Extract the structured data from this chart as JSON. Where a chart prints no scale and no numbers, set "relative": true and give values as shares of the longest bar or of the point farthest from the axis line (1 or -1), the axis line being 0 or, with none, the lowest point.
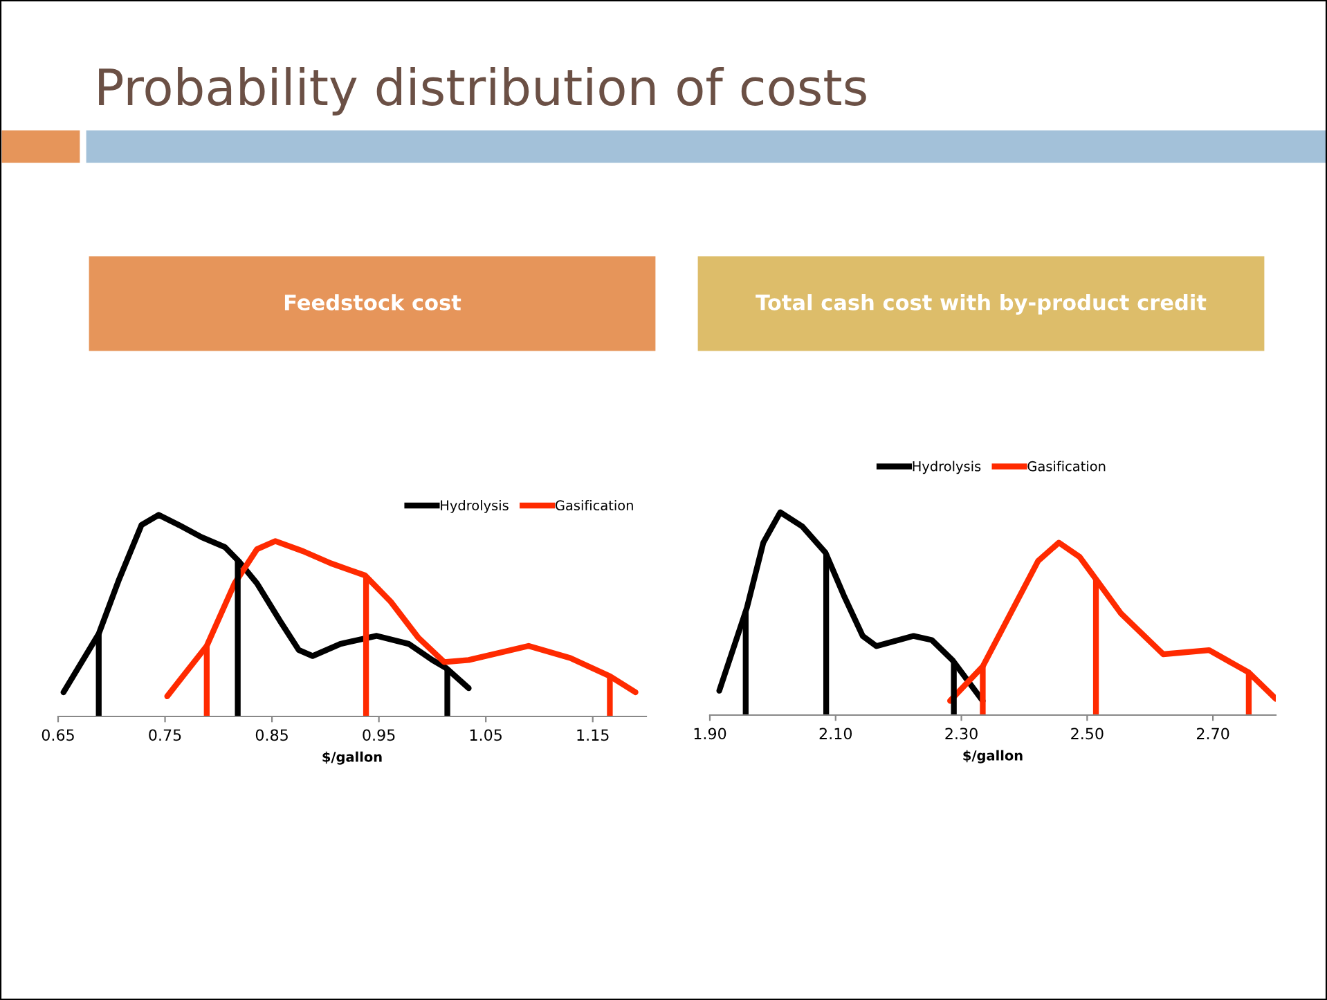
{
  "chart_data": [
    {
      "type": "line",
      "title": "Feedstock cost",
      "xlabel": "$/gallon",
      "relative": true,
      "xlim": [
        0.65,
        1.2
      ],
      "xticks": [
        {
          "value": 0.65,
          "label": "0.65"
        },
        {
          "value": 0.75,
          "label": "0.75"
        },
        {
          "value": 0.85,
          "label": "0.85"
        },
        {
          "value": 0.95,
          "label": "0.95"
        },
        {
          "value": 1.05,
          "label": "1.05"
        },
        {
          "value": 1.15,
          "label": "1.15"
        }
      ],
      "legend": "top right",
      "grid": false,
      "marker": "none",
      "line_style": "solid",
      "annotations": [
        "Probability distribution of costs"
      ],
      "series": [
        {
          "name": "Hydrolysis",
          "color": "#000000",
          "x": [
            0.655,
            0.688,
            0.707,
            0.728,
            0.744,
            0.763,
            0.784,
            0.806,
            0.819,
            0.836,
            0.858,
            0.875,
            0.888,
            0.914,
            0.948,
            0.978,
            1.0,
            1.013,
            1.034
          ],
          "values": [
            0.12,
            0.41,
            0.68,
            0.95,
            1.0,
            0.95,
            0.89,
            0.84,
            0.77,
            0.66,
            0.47,
            0.33,
            0.3,
            0.36,
            0.4,
            0.36,
            0.28,
            0.24,
            0.14
          ]
        },
        {
          "name": "Gasification",
          "color": "#ff2a00",
          "x": [
            0.752,
            0.789,
            0.815,
            0.836,
            0.853,
            0.879,
            0.905,
            0.937,
            0.961,
            0.987,
            1.011,
            1.034,
            1.09,
            1.129,
            1.166,
            1.19
          ],
          "values": [
            0.1,
            0.35,
            0.66,
            0.83,
            0.87,
            0.82,
            0.76,
            0.7,
            0.57,
            0.39,
            0.27,
            0.28,
            0.35,
            0.29,
            0.2,
            0.12
          ]
        }
      ],
      "ref_lines": [
        {
          "axis": "x",
          "value": 0.688,
          "color": "#000000"
        },
        {
          "axis": "x",
          "value": 0.818,
          "color": "#000000"
        },
        {
          "axis": "x",
          "value": 1.014,
          "color": "#000000"
        },
        {
          "axis": "x",
          "value": 0.789,
          "color": "#ff2a00"
        },
        {
          "axis": "x",
          "value": 0.938,
          "color": "#ff2a00"
        },
        {
          "axis": "x",
          "value": 1.166,
          "color": "#ff2a00"
        }
      ]
    },
    {
      "type": "line",
      "title": "Total cash cost with by-product credit",
      "xlabel": "$/gallon",
      "relative": true,
      "xlim": [
        1.9,
        2.8
      ],
      "xticks": [
        {
          "value": 1.9,
          "label": "1.90"
        },
        {
          "value": 2.1,
          "label": "2.10"
        },
        {
          "value": 2.3,
          "label": "2.30"
        },
        {
          "value": 2.5,
          "label": "2.50"
        },
        {
          "value": 2.7,
          "label": "2.70"
        }
      ],
      "legend": "top",
      "grid": false,
      "marker": "none",
      "line_style": "solid",
      "series": [
        {
          "name": "Hydrolysis",
          "color": "#000000",
          "x": [
            1.915,
            1.959,
            1.985,
            2.012,
            2.047,
            2.084,
            2.113,
            2.143,
            2.165,
            2.224,
            2.253,
            2.286,
            2.334
          ],
          "values": [
            0.12,
            0.53,
            0.85,
            1.0,
            0.93,
            0.8,
            0.59,
            0.39,
            0.34,
            0.39,
            0.37,
            0.27,
            0.07
          ]
        },
        {
          "name": "Gasification",
          "color": "#ff2a00",
          "x": [
            2.282,
            2.334,
            2.378,
            2.422,
            2.455,
            2.488,
            2.514,
            2.554,
            2.621,
            2.694,
            2.757,
            2.8
          ],
          "values": [
            0.07,
            0.24,
            0.5,
            0.76,
            0.85,
            0.78,
            0.67,
            0.5,
            0.3,
            0.32,
            0.21,
            0.08
          ]
        }
      ],
      "ref_lines": [
        {
          "axis": "x",
          "value": 1.957,
          "color": "#000000"
        },
        {
          "axis": "x",
          "value": 2.085,
          "color": "#000000"
        },
        {
          "axis": "x",
          "value": 2.288,
          "color": "#000000"
        },
        {
          "axis": "x",
          "value": 2.334,
          "color": "#ff2a00"
        },
        {
          "axis": "x",
          "value": 2.514,
          "color": "#ff2a00"
        },
        {
          "axis": "x",
          "value": 2.757,
          "color": "#ff2a00"
        }
      ]
    }
  ]
}
